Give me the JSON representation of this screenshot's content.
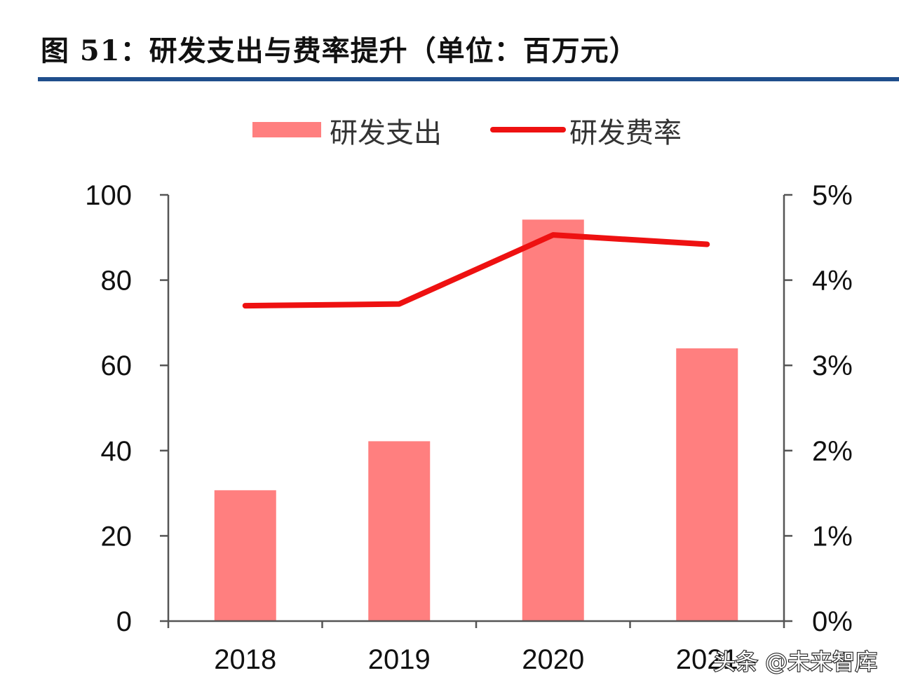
{
  "header": {
    "title": "图 51：研发支出与费率提升（单位：百万元）"
  },
  "watermark": {
    "text": "头条 @未来智库"
  },
  "colors": {
    "bar": "#ff7f7f",
    "line": "#ee1111",
    "axis": "#555555",
    "rule": "#1f4e8c"
  },
  "chart_data": {
    "type": "bar+line",
    "title": "图 51：研发支出与费率提升（单位：百万元）",
    "categories": [
      "2018",
      "2019",
      "2020",
      "2021H"
    ],
    "category_labels": [
      "2018",
      "2019",
      "2020",
      "2021"
    ],
    "series": [
      {
        "name": "研发支出",
        "type": "bar",
        "axis": "left",
        "values": [
          30.7,
          42.2,
          94.2,
          64.0
        ]
      },
      {
        "name": "研发费率",
        "type": "line",
        "axis": "right",
        "values": [
          0.037,
          0.0372,
          0.0453,
          0.0442
        ]
      }
    ],
    "y_left": {
      "min": 0,
      "max": 100,
      "ticks": [
        "0",
        "20",
        "40",
        "60",
        "80",
        "100"
      ]
    },
    "y_right": {
      "min": 0,
      "max": 0.05,
      "ticks": [
        "0%",
        "1%",
        "2%",
        "3%",
        "4%",
        "5%"
      ]
    },
    "legend": {
      "placement": "top-center",
      "entries": [
        "研发支出",
        "研发费率"
      ]
    },
    "grid": false
  }
}
